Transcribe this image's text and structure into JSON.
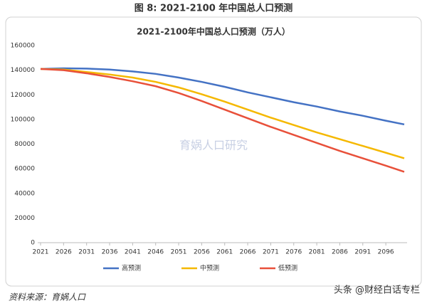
{
  "figure_title": "图 8: 2021-2100 年中国总人口预测",
  "watermark": "育娲人口研究",
  "source": "资料来源：育娲人口",
  "credit": "头条 @财经白话专栏",
  "chart_data": {
    "type": "line",
    "title": "2021-2100年中国总人口预测（万人）",
    "x": [
      2021,
      2026,
      2031,
      2036,
      2041,
      2046,
      2051,
      2056,
      2061,
      2066,
      2071,
      2076,
      2081,
      2086,
      2091,
      2096,
      2100
    ],
    "series": [
      {
        "name": "高预测",
        "color": "#4472c4",
        "values": [
          141000,
          141500,
          141300,
          140500,
          139000,
          137000,
          134000,
          130500,
          126500,
          122000,
          118000,
          114000,
          110500,
          106500,
          103000,
          99000,
          96000
        ]
      },
      {
        "name": "中预测",
        "color": "#f5b800",
        "values": [
          141000,
          140500,
          138500,
          136500,
          134000,
          130500,
          126000,
          120500,
          114500,
          108000,
          101500,
          95500,
          89500,
          84000,
          78500,
          73000,
          68500
        ]
      },
      {
        "name": "低预测",
        "color": "#e8503a",
        "values": [
          141000,
          140000,
          137500,
          134500,
          131000,
          127000,
          121500,
          115000,
          108000,
          101000,
          94000,
          87500,
          81000,
          74500,
          68500,
          62500,
          57500
        ]
      }
    ],
    "xlim": [
      2021,
      2100
    ],
    "xticks": [
      2021,
      2026,
      2031,
      2036,
      2041,
      2046,
      2051,
      2056,
      2061,
      2066,
      2071,
      2076,
      2081,
      2086,
      2091,
      2096
    ],
    "ylim": [
      0,
      160000
    ],
    "yticks": [
      0,
      20000,
      40000,
      60000,
      80000,
      100000,
      120000,
      140000,
      160000
    ],
    "grid": false,
    "legend": "bottom"
  }
}
